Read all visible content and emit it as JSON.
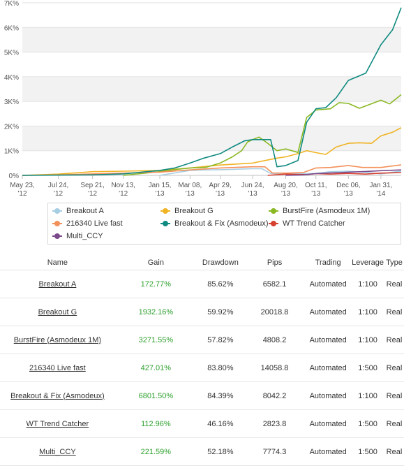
{
  "chart_data": {
    "type": "line",
    "ylim": [
      0,
      7000
    ],
    "yticks": [
      0,
      1000,
      2000,
      3000,
      4000,
      5000,
      6000,
      7000
    ],
    "ytick_labels": [
      "0%",
      "1K%",
      "2K%",
      "3K%",
      "4K%",
      "5K%",
      "6K%",
      "7K%"
    ],
    "grid": true,
    "x_range": [
      "2012-05-23",
      "2014-03-07"
    ],
    "xticks": [
      "2012-05-23",
      "2012-07-24",
      "2012-09-21",
      "2012-11-13",
      "2013-01-15",
      "2013-03-08",
      "2013-04-29",
      "2013-06-24",
      "2013-08-20",
      "2013-10-11",
      "2013-12-06",
      "2014-01-31"
    ],
    "xtick_labels": [
      [
        "May 23,",
        "'12"
      ],
      [
        "Jul 24,",
        "'12"
      ],
      [
        "Sep 21,",
        "'12"
      ],
      [
        "Nov 13,",
        "'12"
      ],
      [
        "Jan 15,",
        "'13"
      ],
      [
        "Mar 08,",
        "'13"
      ],
      [
        "Apr 29,",
        "'13"
      ],
      [
        "Jun 24,",
        "'13"
      ],
      [
        "Aug 20,",
        "'13"
      ],
      [
        "Oct 11,",
        "'13"
      ],
      [
        "Dec 06,",
        "'13"
      ],
      [
        "Jan 31,",
        "'14"
      ]
    ],
    "series": [
      {
        "name": "Breakout A",
        "color": "#a6cee3",
        "points": [
          [
            "2013-01-15",
            0
          ],
          [
            "2013-02-10",
            100
          ],
          [
            "2013-03-08",
            200
          ],
          [
            "2013-04-01",
            220
          ],
          [
            "2013-04-29",
            230
          ],
          [
            "2013-05-20",
            240
          ],
          [
            "2013-06-10",
            260
          ],
          [
            "2013-06-24",
            270
          ],
          [
            "2013-07-10",
            270
          ],
          [
            "2013-07-25",
            80
          ],
          [
            "2013-08-20",
            60
          ],
          [
            "2013-09-10",
            60
          ],
          [
            "2013-10-11",
            80
          ],
          [
            "2013-11-05",
            150
          ],
          [
            "2013-12-06",
            170
          ],
          [
            "2014-01-05",
            120
          ],
          [
            "2014-01-31",
            60
          ],
          [
            "2014-02-20",
            130
          ],
          [
            "2014-03-07",
            173
          ]
        ]
      },
      {
        "name": "Breakout G",
        "color": "#f0b323",
        "points": [
          [
            "2012-05-23",
            0
          ],
          [
            "2012-07-24",
            50
          ],
          [
            "2012-09-21",
            150
          ],
          [
            "2012-11-13",
            170
          ],
          [
            "2013-01-15",
            200
          ],
          [
            "2013-03-08",
            300
          ],
          [
            "2013-04-29",
            420
          ],
          [
            "2013-06-24",
            500
          ],
          [
            "2013-07-15",
            600
          ],
          [
            "2013-08-05",
            700
          ],
          [
            "2013-08-20",
            750
          ],
          [
            "2013-09-10",
            880
          ],
          [
            "2013-09-25",
            1000
          ],
          [
            "2013-10-11",
            920
          ],
          [
            "2013-10-28",
            850
          ],
          [
            "2013-11-15",
            1150
          ],
          [
            "2013-12-06",
            1300
          ],
          [
            "2013-12-25",
            1320
          ],
          [
            "2014-01-15",
            1300
          ],
          [
            "2014-01-31",
            1600
          ],
          [
            "2014-02-20",
            1750
          ],
          [
            "2014-03-07",
            1932
          ]
        ]
      },
      {
        "name": "BurstFire (Asmodeux 1M)",
        "color": "#8ab823",
        "points": [
          [
            "2012-11-13",
            0
          ],
          [
            "2013-01-15",
            150
          ],
          [
            "2013-02-15",
            250
          ],
          [
            "2013-03-08",
            300
          ],
          [
            "2013-04-05",
            330
          ],
          [
            "2013-04-29",
            500
          ],
          [
            "2013-05-20",
            750
          ],
          [
            "2013-06-05",
            1000
          ],
          [
            "2013-06-15",
            1350
          ],
          [
            "2013-06-24",
            1450
          ],
          [
            "2013-07-05",
            1550
          ],
          [
            "2013-07-20",
            1300
          ],
          [
            "2013-08-05",
            1000
          ],
          [
            "2013-08-20",
            1070
          ],
          [
            "2013-09-10",
            930
          ],
          [
            "2013-09-25",
            2350
          ],
          [
            "2013-10-11",
            2650
          ],
          [
            "2013-11-05",
            2700
          ],
          [
            "2013-11-20",
            2950
          ],
          [
            "2013-12-06",
            2920
          ],
          [
            "2013-12-25",
            2720
          ],
          [
            "2014-01-20",
            2950
          ],
          [
            "2014-01-31",
            3050
          ],
          [
            "2014-02-15",
            2900
          ],
          [
            "2014-03-07",
            3272
          ]
        ]
      },
      {
        "name": "216340 Live fast",
        "color": "#f4905a",
        "points": [
          [
            "2012-05-23",
            0
          ],
          [
            "2012-07-24",
            20
          ],
          [
            "2012-09-21",
            60
          ],
          [
            "2012-11-13",
            90
          ],
          [
            "2013-01-15",
            130
          ],
          [
            "2013-03-08",
            220
          ],
          [
            "2013-04-29",
            300
          ],
          [
            "2013-06-24",
            350
          ],
          [
            "2013-07-15",
            350
          ],
          [
            "2013-07-28",
            100
          ],
          [
            "2013-08-20",
            90
          ],
          [
            "2013-09-20",
            120
          ],
          [
            "2013-10-11",
            300
          ],
          [
            "2013-11-05",
            320
          ],
          [
            "2013-12-06",
            400
          ],
          [
            "2013-12-30",
            320
          ],
          [
            "2014-01-31",
            320
          ],
          [
            "2014-02-20",
            380
          ],
          [
            "2014-03-07",
            427
          ]
        ]
      },
      {
        "name": "Breakout & Fix (Asmodeux)",
        "color": "#0f8a80",
        "points": [
          [
            "2012-05-23",
            0
          ],
          [
            "2012-09-21",
            20
          ],
          [
            "2012-11-13",
            60
          ],
          [
            "2013-01-15",
            200
          ],
          [
            "2013-02-10",
            300
          ],
          [
            "2013-03-08",
            500
          ],
          [
            "2013-04-01",
            700
          ],
          [
            "2013-04-29",
            880
          ],
          [
            "2013-05-20",
            1150
          ],
          [
            "2013-06-10",
            1400
          ],
          [
            "2013-06-24",
            1450
          ],
          [
            "2013-07-10",
            1450
          ],
          [
            "2013-07-25",
            1450
          ],
          [
            "2013-08-05",
            350
          ],
          [
            "2013-08-20",
            400
          ],
          [
            "2013-09-10",
            600
          ],
          [
            "2013-09-25",
            2150
          ],
          [
            "2013-10-11",
            2700
          ],
          [
            "2013-10-28",
            2750
          ],
          [
            "2013-11-15",
            3150
          ],
          [
            "2013-12-06",
            3850
          ],
          [
            "2014-01-05",
            4150
          ],
          [
            "2014-01-31",
            5300
          ],
          [
            "2014-02-20",
            5900
          ],
          [
            "2014-03-07",
            6802
          ]
        ]
      },
      {
        "name": "WT Trend Catcher",
        "color": "#d7402f",
        "points": [
          [
            "2013-07-20",
            0
          ],
          [
            "2013-08-20",
            50
          ],
          [
            "2013-09-25",
            30
          ],
          [
            "2013-10-11",
            70
          ],
          [
            "2013-11-05",
            50
          ],
          [
            "2013-12-06",
            80
          ],
          [
            "2014-01-05",
            50
          ],
          [
            "2014-01-31",
            90
          ],
          [
            "2014-03-07",
            113
          ]
        ]
      },
      {
        "name": "Multi_CCY",
        "color": "#7b4a8c",
        "points": [
          [
            "2013-08-20",
            0
          ],
          [
            "2013-09-20",
            20
          ],
          [
            "2013-10-11",
            70
          ],
          [
            "2013-11-05",
            100
          ],
          [
            "2013-12-06",
            130
          ],
          [
            "2014-01-05",
            160
          ],
          [
            "2014-01-31",
            190
          ],
          [
            "2014-03-07",
            222
          ]
        ]
      }
    ]
  },
  "legend": [
    {
      "label": "Breakout A",
      "color": "#a6cee3"
    },
    {
      "label": "Breakout G",
      "color": "#f0b323"
    },
    {
      "label": "BurstFire (Asmodeux 1M)",
      "color": "#8ab823"
    },
    {
      "label": "216340 Live fast",
      "color": "#f4905a"
    },
    {
      "label": "Breakout & Fix (Asmodeux)",
      "color": "#0f8a80"
    },
    {
      "label": "WT Trend Catcher",
      "color": "#d7402f"
    },
    {
      "label": "Multi_CCY",
      "color": "#7b4a8c"
    }
  ],
  "table": {
    "headers": [
      "Name",
      "Gain",
      "Drawdown",
      "Pips",
      "Trading",
      "Leverage",
      "Type"
    ],
    "rows": [
      {
        "name": "Breakout A",
        "gain": "172.77%",
        "drawdown": "85.62%",
        "pips": "6582.1",
        "trading": "Automated",
        "leverage": "1:100",
        "type": "Real"
      },
      {
        "name": "Breakout G",
        "gain": "1932.16%",
        "drawdown": "59.92%",
        "pips": "20018.8",
        "trading": "Automated",
        "leverage": "1:100",
        "type": "Real"
      },
      {
        "name": "BurstFire (Asmodeux 1M)",
        "gain": "3271.55%",
        "drawdown": "57.82%",
        "pips": "4808.2",
        "trading": "Automated",
        "leverage": "1:100",
        "type": "Real"
      },
      {
        "name": "216340 Live fast",
        "gain": "427.01%",
        "drawdown": "83.80%",
        "pips": "14058.8",
        "trading": "Automated",
        "leverage": "1:500",
        "type": "Real"
      },
      {
        "name": "Breakout & Fix (Asmodeux)",
        "gain": "6801.50%",
        "drawdown": "84.39%",
        "pips": "8042.2",
        "trading": "Automated",
        "leverage": "1:100",
        "type": "Real"
      },
      {
        "name": "WT Trend Catcher",
        "gain": "112.96%",
        "drawdown": "46.16%",
        "pips": "2823.8",
        "trading": "Automated",
        "leverage": "1:500",
        "type": "Real"
      },
      {
        "name": "Multi_CCY",
        "gain": "221.59%",
        "drawdown": "52.18%",
        "pips": "7774.3",
        "trading": "Automated",
        "leverage": "1:500",
        "type": "Real"
      }
    ]
  }
}
